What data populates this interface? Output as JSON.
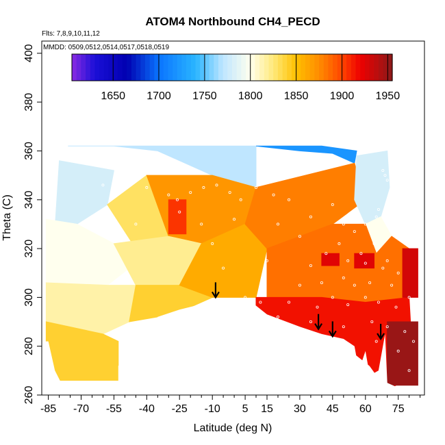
{
  "chart_data": {
    "type": "heatmap",
    "title": "ATOM4 Northbound CH4_PECD",
    "flights_note": "Flts: 7,8,9,10,11,12",
    "dates_note": "MMDD: 0509,0512,0514,0517,0518,0519",
    "xlabel": "Latitude (deg N)",
    "ylabel": "Theta (C)",
    "xlim": [
      -88,
      87
    ],
    "ylim": [
      260,
      405
    ],
    "x_ticks": [
      -85,
      -70,
      -55,
      -40,
      -25,
      -10,
      5,
      15,
      30,
      45,
      60,
      75
    ],
    "y_ticks": [
      260,
      280,
      300,
      320,
      340,
      360,
      380,
      400
    ],
    "colorbar": {
      "range": [
        1605,
        1955
      ],
      "ticks": [
        1650,
        1700,
        1750,
        1800,
        1850,
        1900,
        1950
      ],
      "stops": [
        {
          "value": 1605,
          "color": "#8a2be2"
        },
        {
          "value": 1630,
          "color": "#1b0fd8"
        },
        {
          "value": 1665,
          "color": "#0000b0"
        },
        {
          "value": 1700,
          "color": "#0a74ff"
        },
        {
          "value": 1740,
          "color": "#2ab5ff"
        },
        {
          "value": 1770,
          "color": "#bfe6ff"
        },
        {
          "value": 1800,
          "color": "#ffffee"
        },
        {
          "value": 1825,
          "color": "#ffe97a"
        },
        {
          "value": 1850,
          "color": "#ffc000"
        },
        {
          "value": 1875,
          "color": "#ff8c00"
        },
        {
          "value": 1900,
          "color": "#ff4500"
        },
        {
          "value": 1920,
          "color": "#ee0000"
        },
        {
          "value": 1955,
          "color": "#8b1a1a"
        }
      ]
    },
    "field_patches": [
      {
        "points": [
          [
            -76,
            362
          ],
          [
            -55,
            362
          ],
          [
            -35,
            360
          ],
          [
            -10,
            350
          ],
          [
            10,
            345
          ],
          [
            10,
            362
          ]
        ],
        "value": 1770
      },
      {
        "points": [
          [
            10,
            362
          ],
          [
            30,
            360
          ],
          [
            45,
            359
          ],
          [
            55,
            355
          ],
          [
            56,
            360
          ],
          [
            40,
            362
          ]
        ],
        "value": 1720
      },
      {
        "points": [
          [
            -80,
            356
          ],
          [
            -55,
            352
          ],
          [
            -58,
            338
          ],
          [
            -72,
            330
          ],
          [
            -82,
            328
          ]
        ],
        "value": 1780
      },
      {
        "points": [
          [
            -86,
            332
          ],
          [
            -72,
            330
          ],
          [
            -55,
            322
          ],
          [
            -48,
            312
          ],
          [
            -58,
            305
          ],
          [
            -86,
            306
          ]
        ],
        "value": 1800
      },
      {
        "points": [
          [
            -58,
            338
          ],
          [
            -40,
            350
          ],
          [
            -25,
            342
          ],
          [
            -30,
            325
          ],
          [
            -45,
            320
          ]
        ],
        "value": 1830
      },
      {
        "points": [
          [
            -40,
            350
          ],
          [
            -10,
            350
          ],
          [
            10,
            345
          ],
          [
            5,
            330
          ],
          [
            -15,
            322
          ],
          [
            -30,
            325
          ]
        ],
        "value": 1870
      },
      {
        "points": [
          [
            -55,
            322
          ],
          [
            -30,
            325
          ],
          [
            -15,
            322
          ],
          [
            -25,
            305
          ],
          [
            -45,
            305
          ]
        ],
        "value": 1820
      },
      {
        "points": [
          [
            -86,
            306
          ],
          [
            -58,
            305
          ],
          [
            -45,
            305
          ],
          [
            -48,
            290
          ],
          [
            -60,
            285
          ],
          [
            -86,
            290
          ]
        ],
        "value": 1815
      },
      {
        "points": [
          [
            -45,
            305
          ],
          [
            -25,
            305
          ],
          [
            -10,
            300
          ],
          [
            -20,
            296
          ],
          [
            -35,
            292
          ],
          [
            -48,
            290
          ]
        ],
        "value": 1840
      },
      {
        "points": [
          [
            -86,
            290
          ],
          [
            -60,
            285
          ],
          [
            -53,
            282
          ],
          [
            -53,
            266
          ],
          [
            -80,
            266
          ],
          [
            -86,
            276
          ]
        ],
        "value": 1840
      },
      {
        "points": [
          [
            -15,
            322
          ],
          [
            5,
            330
          ],
          [
            15,
            320
          ],
          [
            10,
            300
          ],
          [
            -10,
            300
          ],
          [
            -25,
            305
          ]
        ],
        "value": 1860
      },
      {
        "points": [
          [
            10,
            345
          ],
          [
            55,
            355
          ],
          [
            60,
            340
          ],
          [
            45,
            330
          ],
          [
            15,
            320
          ],
          [
            5,
            330
          ]
        ],
        "value": 1880
      },
      {
        "points": [
          [
            56,
            358
          ],
          [
            70,
            360
          ],
          [
            71,
            345
          ],
          [
            67,
            333
          ],
          [
            60,
            330
          ],
          [
            55,
            340
          ]
        ],
        "value": 1780
      },
      {
        "points": [
          [
            60,
            330
          ],
          [
            67,
            333
          ],
          [
            72,
            325
          ],
          [
            65,
            318
          ],
          [
            58,
            322
          ]
        ],
        "value": 1800
      },
      {
        "points": [
          [
            15,
            320
          ],
          [
            45,
            330
          ],
          [
            60,
            330
          ],
          [
            65,
            318
          ],
          [
            72,
            325
          ],
          [
            80,
            320
          ],
          [
            80,
            300
          ],
          [
            60,
            298
          ],
          [
            40,
            300
          ],
          [
            15,
            300
          ]
        ],
        "value": 1885
      },
      {
        "points": [
          [
            10,
            300
          ],
          [
            40,
            300
          ],
          [
            60,
            298
          ],
          [
            80,
            300
          ],
          [
            82,
            268
          ],
          [
            70,
            262
          ],
          [
            62,
            272
          ],
          [
            45,
            284
          ],
          [
            30,
            285
          ],
          [
            10,
            292
          ]
        ],
        "value": 1915
      },
      {
        "points": [
          [
            40,
            318
          ],
          [
            48,
            318
          ],
          [
            48,
            313
          ],
          [
            40,
            313
          ]
        ],
        "value": 1925
      },
      {
        "points": [
          [
            55,
            318
          ],
          [
            64,
            318
          ],
          [
            64,
            312
          ],
          [
            55,
            312
          ]
        ],
        "value": 1925
      },
      {
        "points": [
          [
            -30,
            340
          ],
          [
            -22,
            340
          ],
          [
            -22,
            326
          ],
          [
            -30,
            326
          ]
        ],
        "value": 1905
      },
      {
        "points": [
          [
            77,
            320
          ],
          [
            84,
            320
          ],
          [
            84,
            300
          ],
          [
            77,
            300
          ]
        ],
        "value": 1930
      },
      {
        "points": [
          [
            70,
            290
          ],
          [
            84,
            290
          ],
          [
            84,
            264
          ],
          [
            70,
            264
          ]
        ],
        "value": 1950
      }
    ],
    "blank_region_boundary": [
      [
        -88,
        260
      ],
      [
        -88,
        282
      ],
      [
        -85,
        282
      ],
      [
        -82,
        270
      ],
      [
        -78,
        263
      ],
      [
        -53,
        263
      ],
      [
        -53,
        272
      ],
      [
        -45,
        274
      ],
      [
        -40,
        284
      ],
      [
        -35,
        292
      ],
      [
        -25,
        295
      ],
      [
        -16,
        297
      ],
      [
        -5,
        299
      ],
      [
        8,
        298
      ],
      [
        15,
        293
      ],
      [
        30,
        288
      ],
      [
        40,
        285
      ],
      [
        50,
        283
      ],
      [
        55,
        280
      ],
      [
        57,
        270
      ],
      [
        60,
        278
      ],
      [
        62,
        268
      ],
      [
        66,
        270
      ],
      [
        69,
        285
      ],
      [
        70,
        265
      ],
      [
        80,
        261
      ],
      [
        87,
        260
      ]
    ],
    "observation_points": [
      [
        -30,
        342
      ],
      [
        -26,
        340
      ],
      [
        -20,
        343
      ],
      [
        -14,
        345
      ],
      [
        -8,
        346
      ],
      [
        -2,
        343
      ],
      [
        3,
        340
      ],
      [
        10,
        345
      ],
      [
        18,
        342
      ],
      [
        25,
        340
      ],
      [
        -25,
        335
      ],
      [
        -15,
        330
      ],
      [
        0,
        332
      ],
      [
        20,
        330
      ],
      [
        35,
        333
      ],
      [
        45,
        338
      ],
      [
        50,
        330
      ],
      [
        55,
        327
      ],
      [
        60,
        330
      ],
      [
        65,
        333
      ],
      [
        68,
        352
      ],
      [
        69,
        350
      ],
      [
        70,
        348
      ],
      [
        72,
        345
      ],
      [
        71,
        340
      ],
      [
        66,
        336
      ],
      [
        58,
        318
      ],
      [
        64,
        322
      ],
      [
        70,
        315
      ],
      [
        75,
        310
      ],
      [
        42,
        318
      ],
      [
        48,
        322
      ],
      [
        52,
        315
      ],
      [
        60,
        314
      ],
      [
        68,
        312
      ],
      [
        30,
        305
      ],
      [
        40,
        306
      ],
      [
        55,
        305
      ],
      [
        62,
        306
      ],
      [
        72,
        305
      ],
      [
        5,
        300
      ],
      [
        12,
        298
      ],
      [
        25,
        298
      ],
      [
        38,
        296
      ],
      [
        45,
        300
      ],
      [
        52,
        297
      ],
      [
        60,
        300
      ],
      [
        66,
        298
      ],
      [
        74,
        296
      ],
      [
        80,
        300
      ],
      [
        20,
        292
      ],
      [
        35,
        290
      ],
      [
        50,
        288
      ],
      [
        63,
        290
      ],
      [
        70,
        288
      ],
      [
        78,
        286
      ],
      [
        82,
        282
      ],
      [
        75,
        278
      ],
      [
        80,
        270
      ],
      [
        65,
        282
      ],
      [
        -40,
        345
      ],
      [
        -45,
        330
      ],
      [
        -5,
        312
      ],
      [
        15,
        315
      ],
      [
        30,
        325
      ],
      [
        35,
        313
      ],
      [
        -10,
        322
      ],
      [
        50,
        308
      ],
      [
        78,
        326
      ],
      [
        -60,
        346
      ]
    ],
    "annotations": [
      {
        "type": "down-arrow",
        "x": -8.5,
        "y": 300
      },
      {
        "type": "down-arrow",
        "x": 38.5,
        "y": 287
      },
      {
        "type": "down-arrow",
        "x": 45,
        "y": 284
      },
      {
        "type": "down-arrow",
        "x": 67,
        "y": 283
      }
    ]
  }
}
